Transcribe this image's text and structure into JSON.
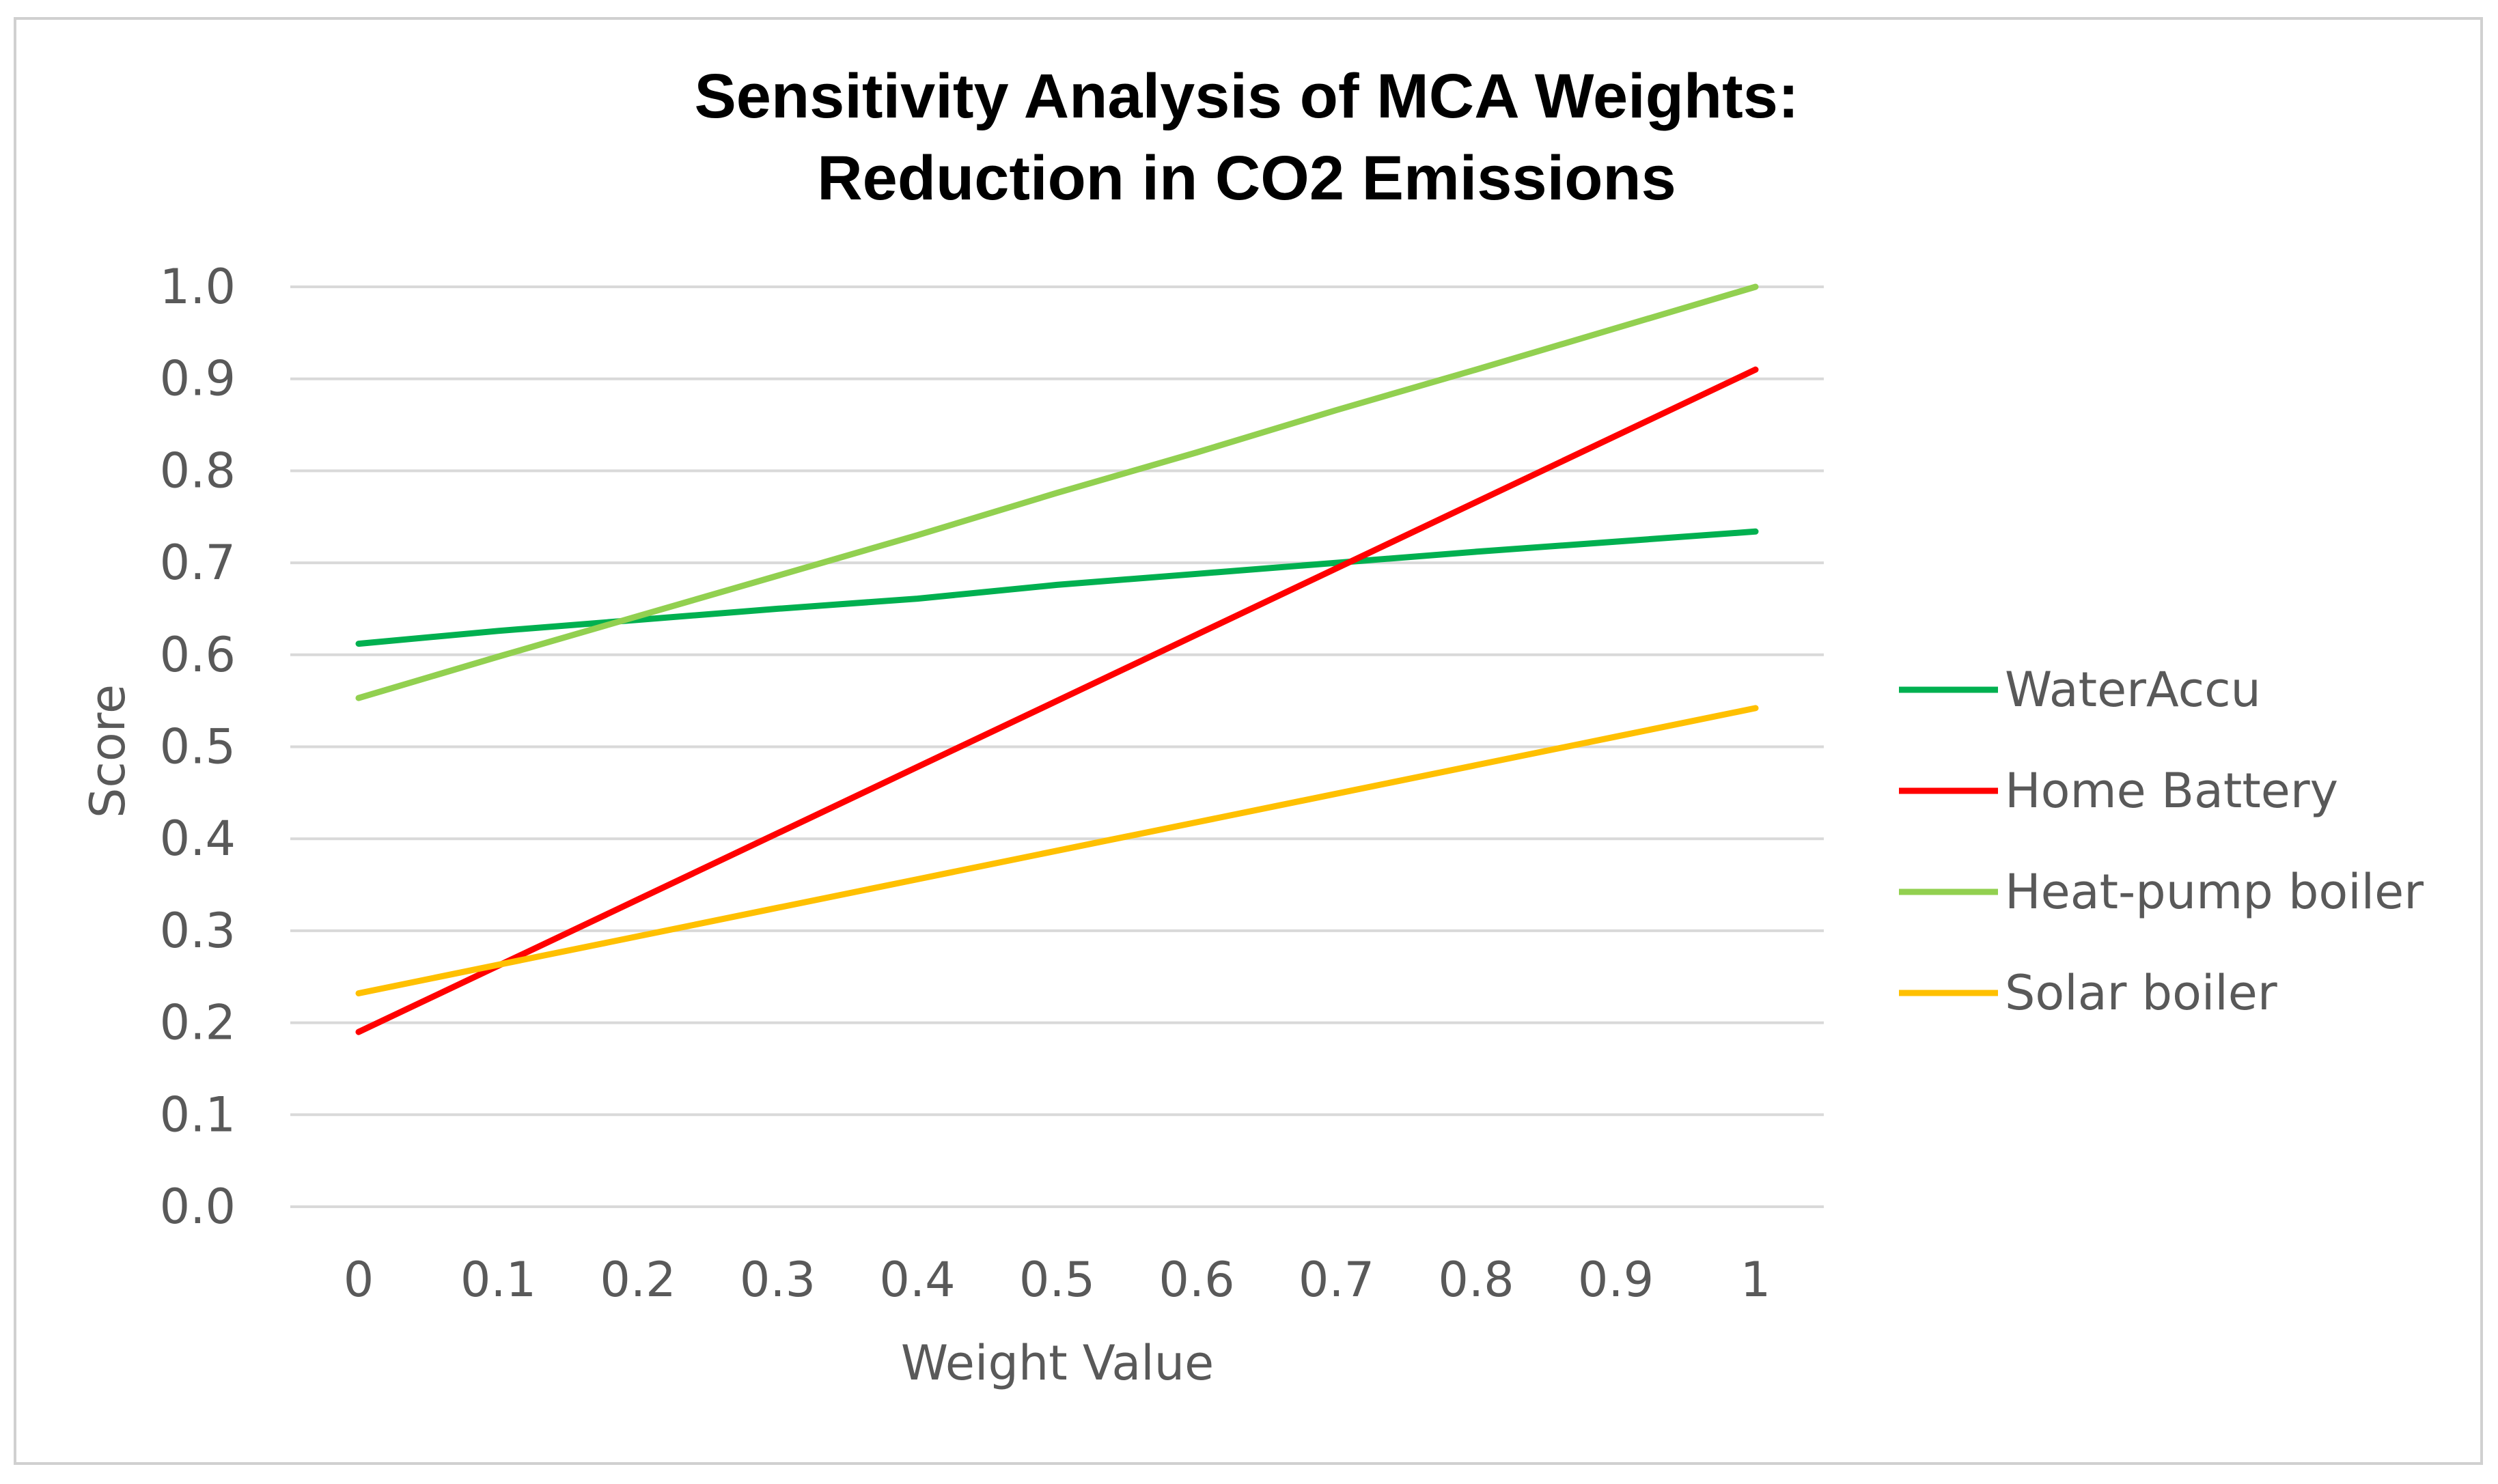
{
  "chart_data": {
    "type": "line",
    "title": [
      "Sensitivity Analysis of MCA Weights:",
      "Reduction in CO2 Emissions"
    ],
    "xlabel": "Weight Value",
    "ylabel": "Score",
    "categories": [
      "0",
      "0.1",
      "0.2",
      "0.3",
      "0.4",
      "0.5",
      "0.6",
      "0.7",
      "0.8",
      "0.9",
      "1"
    ],
    "yticks": [
      "0.0",
      "0.1",
      "0.2",
      "0.3",
      "0.4",
      "0.5",
      "0.6",
      "0.7",
      "0.8",
      "0.9",
      "1.0"
    ],
    "ylim": [
      0,
      1
    ],
    "grid": true,
    "legend_position": "right",
    "series": [
      {
        "name": "WaterAccu",
        "color": "#00B050",
        "values": [
          0.612,
          0.626,
          0.638,
          0.65,
          0.661,
          0.676,
          0.688,
          0.7,
          0.712,
          0.723,
          0.734
        ]
      },
      {
        "name": "Home Battery",
        "color": "#FF0000",
        "values": [
          0.19,
          0.262,
          0.334,
          0.406,
          0.478,
          0.55,
          0.622,
          0.694,
          0.766,
          0.838,
          0.91
        ]
      },
      {
        "name": "Heat-pump boiler",
        "color": "#92D050",
        "values": [
          0.553,
          0.598,
          0.642,
          0.686,
          0.73,
          0.776,
          0.82,
          0.866,
          0.91,
          0.955,
          1.0
        ]
      },
      {
        "name": "Solar boiler",
        "color": "#FFC000",
        "values": [
          0.232,
          0.263,
          0.294,
          0.325,
          0.356,
          0.387,
          0.418,
          0.449,
          0.48,
          0.511,
          0.542
        ]
      }
    ]
  }
}
